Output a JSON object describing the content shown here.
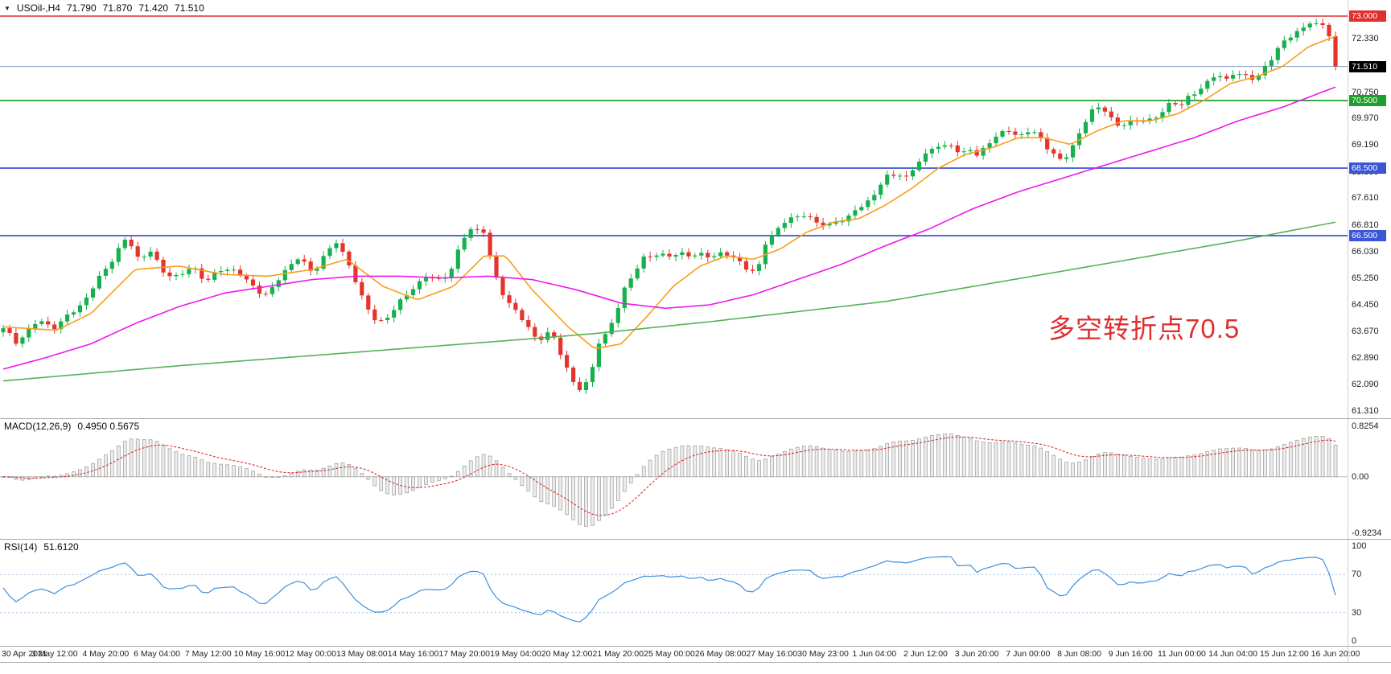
{
  "header": {
    "symbol_period": "USOil-,H4",
    "open": "71.790",
    "high": "71.870",
    "low": "71.420",
    "close": "71.510"
  },
  "icons": {
    "header_marker": "▼"
  },
  "annotation": {
    "text": "多空转折点70.5",
    "color": "#e02f2f"
  },
  "colors": {
    "bull": "#18b04f",
    "bear": "#e4342c",
    "ma_fast": "#f99d1c",
    "ma_mid": "#ee18ee",
    "ma_slow": "#56b156",
    "current_line": "#7d9cc9",
    "macd_hist_fill": "#ececec",
    "macd_hist_stroke": "#9a9a9a",
    "macd_signal": "#e02f2f",
    "rsi_line": "#3e8fdd",
    "rsi_level": "#a9c4e0",
    "separator": "#a8a8a8",
    "text": "#222222"
  },
  "chart_data": {
    "type": "candlestick",
    "symbol": "USOil-",
    "timeframe": "H4",
    "title": "USOil- H4 candlestick chart with MACD and RSI",
    "ohlc_display": {
      "open": 71.79,
      "high": 71.87,
      "low": 71.42,
      "close": 71.51
    },
    "bar_count": 209,
    "y_axis": {
      "range": [
        61.31,
        73.48
      ],
      "ticks": [
        {
          "label": "72.330",
          "price": 72.33
        },
        {
          "label": "70.750",
          "price": 70.75
        },
        {
          "label": "69.970",
          "price": 69.97
        },
        {
          "label": "69.190",
          "price": 69.19
        },
        {
          "label": "68.390",
          "price": 68.39
        },
        {
          "label": "67.610",
          "price": 67.61
        },
        {
          "label": "66.810",
          "price": 66.81
        },
        {
          "label": "66.030",
          "price": 66.03
        },
        {
          "label": "65.250",
          "price": 65.25
        },
        {
          "label": "64.450",
          "price": 64.45
        },
        {
          "label": "63.670",
          "price": 63.67
        },
        {
          "label": "62.890",
          "price": 62.89
        },
        {
          "label": "62.090",
          "price": 62.09
        },
        {
          "label": "61.310",
          "price": 61.31
        }
      ]
    },
    "x_axis": {
      "labels": [
        "30 Apr 2021",
        "3 May 12:00",
        "4 May 20:00",
        "6 May 04:00",
        "7 May 12:00",
        "10 May 16:00",
        "12 May 00:00",
        "13 May 08:00",
        "14 May 16:00",
        "17 May 20:00",
        "19 May 04:00",
        "20 May 12:00",
        "21 May 20:00",
        "25 May 00:00",
        "26 May 08:00",
        "27 May 16:00",
        "30 May 23:00",
        "1 Jun 04:00",
        "2 Jun 12:00",
        "3 Jun 20:00",
        "7 Jun 00:00",
        "8 Jun 08:00",
        "9 Jun 16:00",
        "11 Jun 00:00",
        "14 Jun 04:00",
        "15 Jun 12:00",
        "16 Jun 20:00"
      ]
    },
    "levels": [
      {
        "label": "73.000",
        "price": 73.0,
        "color": "#e02f2f",
        "line_width": 1.4
      },
      {
        "label": "70.500",
        "price": 70.5,
        "color": "#1f9e2c",
        "line_width": 1.8
      },
      {
        "label": "68.500",
        "price": 68.5,
        "color": "#3a56d4",
        "line_width": 1.8
      },
      {
        "label": "66.500",
        "price": 66.5,
        "color": "#3a56d4",
        "line_width": 1.8
      }
    ],
    "current_price": {
      "label": "71.510",
      "price": 71.51,
      "badge_bg": "#000000",
      "line_color": "#7d9cc9"
    },
    "price_path_anchors": [
      [
        0,
        63.7
      ],
      [
        0.01,
        63.35
      ],
      [
        0.026,
        64.0
      ],
      [
        0.04,
        63.8
      ],
      [
        0.06,
        64.5
      ],
      [
        0.073,
        65.3
      ],
      [
        0.086,
        66.1
      ],
      [
        0.093,
        66.45
      ],
      [
        0.103,
        65.7
      ],
      [
        0.109,
        66.15
      ],
      [
        0.119,
        65.4
      ],
      [
        0.132,
        65.3
      ],
      [
        0.142,
        65.6
      ],
      [
        0.152,
        65.2
      ],
      [
        0.166,
        65.5
      ],
      [
        0.175,
        65.45
      ],
      [
        0.189,
        64.9
      ],
      [
        0.199,
        64.8
      ],
      [
        0.212,
        65.5
      ],
      [
        0.222,
        65.9
      ],
      [
        0.232,
        65.3
      ],
      [
        0.242,
        66.0
      ],
      [
        0.25,
        66.3
      ],
      [
        0.262,
        65.5
      ],
      [
        0.272,
        64.4
      ],
      [
        0.281,
        63.9
      ],
      [
        0.289,
        64.1
      ],
      [
        0.298,
        64.5
      ],
      [
        0.308,
        65.0
      ],
      [
        0.318,
        65.3
      ],
      [
        0.328,
        65.2
      ],
      [
        0.338,
        65.6
      ],
      [
        0.344,
        66.3
      ],
      [
        0.351,
        66.7
      ],
      [
        0.361,
        66.6
      ],
      [
        0.368,
        65.4
      ],
      [
        0.374,
        64.9
      ],
      [
        0.384,
        64.3
      ],
      [
        0.394,
        63.8
      ],
      [
        0.401,
        63.4
      ],
      [
        0.411,
        63.6
      ],
      [
        0.421,
        62.8
      ],
      [
        0.427,
        62.2
      ],
      [
        0.434,
        61.9
      ],
      [
        0.44,
        62.3
      ],
      [
        0.447,
        63.4
      ],
      [
        0.454,
        63.6
      ],
      [
        0.46,
        64.2
      ],
      [
        0.467,
        65.0
      ],
      [
        0.474,
        65.4
      ],
      [
        0.481,
        65.8
      ],
      [
        0.49,
        66.0
      ],
      [
        0.5,
        65.9
      ],
      [
        0.51,
        66.0
      ],
      [
        0.52,
        65.9
      ],
      [
        0.53,
        65.85
      ],
      [
        0.54,
        66.0
      ],
      [
        0.55,
        65.8
      ],
      [
        0.558,
        65.6
      ],
      [
        0.566,
        65.4
      ],
      [
        0.571,
        66.2
      ],
      [
        0.579,
        66.6
      ],
      [
        0.586,
        66.9
      ],
      [
        0.596,
        67.0
      ],
      [
        0.603,
        67.2
      ],
      [
        0.609,
        66.9
      ],
      [
        0.619,
        66.8
      ],
      [
        0.626,
        67.0
      ],
      [
        0.634,
        67.0
      ],
      [
        0.642,
        67.3
      ],
      [
        0.652,
        67.6
      ],
      [
        0.662,
        68.2
      ],
      [
        0.672,
        68.4
      ],
      [
        0.679,
        68.2
      ],
      [
        0.685,
        68.6
      ],
      [
        0.692,
        68.9
      ],
      [
        0.699,
        69.2
      ],
      [
        0.705,
        69.0
      ],
      [
        0.711,
        69.2
      ],
      [
        0.719,
        68.9
      ],
      [
        0.725,
        69.1
      ],
      [
        0.732,
        68.8
      ],
      [
        0.738,
        69.3
      ],
      [
        0.748,
        69.5
      ],
      [
        0.755,
        69.6
      ],
      [
        0.762,
        69.4
      ],
      [
        0.768,
        69.6
      ],
      [
        0.778,
        69.4
      ],
      [
        0.787,
        69.0
      ],
      [
        0.795,
        68.7
      ],
      [
        0.801,
        69.0
      ],
      [
        0.808,
        69.6
      ],
      [
        0.815,
        70.1
      ],
      [
        0.825,
        70.3
      ],
      [
        0.831,
        70.0
      ],
      [
        0.838,
        69.7
      ],
      [
        0.848,
        69.9
      ],
      [
        0.854,
        70.0
      ],
      [
        0.863,
        69.9
      ],
      [
        0.871,
        70.2
      ],
      [
        0.877,
        70.5
      ],
      [
        0.884,
        70.3
      ],
      [
        0.891,
        70.6
      ],
      [
        0.902,
        71.0
      ],
      [
        0.911,
        71.3
      ],
      [
        0.917,
        71.1
      ],
      [
        0.924,
        71.4
      ],
      [
        0.93,
        71.2
      ],
      [
        0.94,
        71.1
      ],
      [
        0.947,
        71.5
      ],
      [
        0.954,
        71.8
      ],
      [
        0.96,
        72.2
      ],
      [
        0.967,
        72.5
      ],
      [
        0.973,
        72.6
      ],
      [
        0.979,
        72.7
      ],
      [
        0.983,
        72.95
      ],
      [
        0.988,
        72.6
      ],
      [
        0.992,
        72.85
      ],
      [
        0.996,
        72.3
      ],
      [
        1,
        71.51
      ]
    ],
    "moving_averages": [
      {
        "name": "fast",
        "color": "#f99d1c",
        "anchors": [
          [
            0,
            63.8
          ],
          [
            0.04,
            63.7
          ],
          [
            0.066,
            64.2
          ],
          [
            0.099,
            65.5
          ],
          [
            0.132,
            65.6
          ],
          [
            0.166,
            65.35
          ],
          [
            0.199,
            65.3
          ],
          [
            0.232,
            65.5
          ],
          [
            0.258,
            65.8
          ],
          [
            0.285,
            65.0
          ],
          [
            0.311,
            64.6
          ],
          [
            0.338,
            65.0
          ],
          [
            0.361,
            65.9
          ],
          [
            0.377,
            65.9
          ],
          [
            0.397,
            64.9
          ],
          [
            0.424,
            63.8
          ],
          [
            0.444,
            63.15
          ],
          [
            0.464,
            63.3
          ],
          [
            0.483,
            64.1
          ],
          [
            0.503,
            65.0
          ],
          [
            0.523,
            65.6
          ],
          [
            0.543,
            65.9
          ],
          [
            0.563,
            65.8
          ],
          [
            0.583,
            66.1
          ],
          [
            0.603,
            66.6
          ],
          [
            0.623,
            66.9
          ],
          [
            0.642,
            67.0
          ],
          [
            0.662,
            67.4
          ],
          [
            0.682,
            67.9
          ],
          [
            0.702,
            68.5
          ],
          [
            0.722,
            68.9
          ],
          [
            0.742,
            69.1
          ],
          [
            0.762,
            69.4
          ],
          [
            0.781,
            69.4
          ],
          [
            0.801,
            69.2
          ],
          [
            0.821,
            69.6
          ],
          [
            0.841,
            69.9
          ],
          [
            0.861,
            69.9
          ],
          [
            0.881,
            70.1
          ],
          [
            0.901,
            70.5
          ],
          [
            0.921,
            71.0
          ],
          [
            0.94,
            71.2
          ],
          [
            0.96,
            71.5
          ],
          [
            0.98,
            72.1
          ],
          [
            1,
            72.4
          ]
        ]
      },
      {
        "name": "medium",
        "color": "#ee18ee",
        "anchors": [
          [
            0,
            62.55
          ],
          [
            0.033,
            62.9
          ],
          [
            0.066,
            63.3
          ],
          [
            0.099,
            63.9
          ],
          [
            0.132,
            64.4
          ],
          [
            0.166,
            64.8
          ],
          [
            0.199,
            65.0
          ],
          [
            0.232,
            65.2
          ],
          [
            0.265,
            65.3
          ],
          [
            0.298,
            65.3
          ],
          [
            0.331,
            65.25
          ],
          [
            0.364,
            65.3
          ],
          [
            0.397,
            65.2
          ],
          [
            0.43,
            64.9
          ],
          [
            0.464,
            64.5
          ],
          [
            0.497,
            64.35
          ],
          [
            0.53,
            64.45
          ],
          [
            0.563,
            64.75
          ],
          [
            0.596,
            65.2
          ],
          [
            0.629,
            65.65
          ],
          [
            0.662,
            66.2
          ],
          [
            0.695,
            66.7
          ],
          [
            0.728,
            67.3
          ],
          [
            0.762,
            67.8
          ],
          [
            0.795,
            68.2
          ],
          [
            0.828,
            68.6
          ],
          [
            0.861,
            69.0
          ],
          [
            0.894,
            69.4
          ],
          [
            0.927,
            69.9
          ],
          [
            0.96,
            70.3
          ],
          [
            1,
            70.9
          ]
        ]
      },
      {
        "name": "slow",
        "color": "#56b156",
        "anchors": [
          [
            0,
            62.2
          ],
          [
            0.132,
            62.65
          ],
          [
            0.265,
            63.05
          ],
          [
            0.397,
            63.45
          ],
          [
            0.443,
            63.6
          ],
          [
            0.53,
            63.95
          ],
          [
            0.662,
            64.55
          ],
          [
            0.795,
            65.45
          ],
          [
            0.927,
            66.35
          ],
          [
            1,
            66.9
          ]
        ]
      }
    ],
    "indicators": {
      "macd": {
        "name_label": "MACD(12,26,9)",
        "values_label": "0.4950 0.5675",
        "params": [
          12,
          26,
          9
        ],
        "scale_labels": {
          "max": "0.8254",
          "zero": "0.00",
          "min": "-0.9234"
        },
        "scale_values": {
          "max": 0.8254,
          "min": -0.9234
        }
      },
      "rsi": {
        "name_label": "RSI(14)",
        "value_label": "51.6120",
        "period": 14,
        "levels": [
          70,
          30
        ],
        "scale_labels": [
          "100",
          "70",
          "30",
          "0"
        ]
      }
    }
  }
}
